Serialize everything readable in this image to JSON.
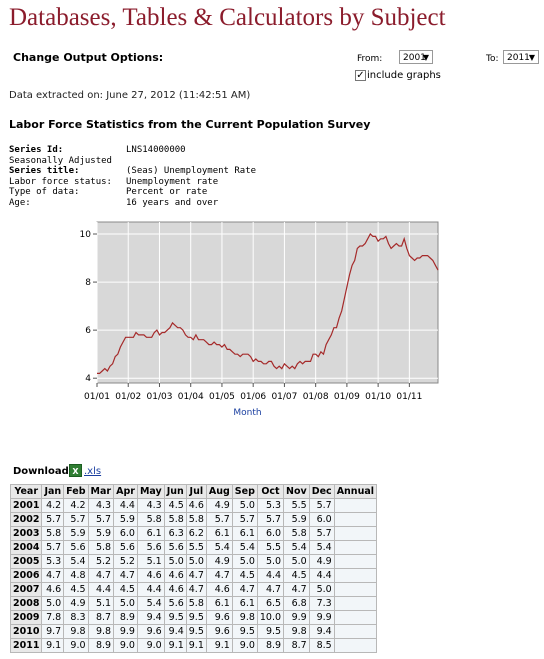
{
  "page": {
    "title": "Databases, Tables & Calculators by Subject",
    "options": {
      "label": "Change Output Options:",
      "from_label": "From:",
      "from_value": "2001",
      "to_label": "To:",
      "to_value": "2011",
      "include_graphs_label": "include graphs",
      "include_graphs_checked": true
    },
    "extracted": "Data extracted on: June 27, 2012 (11:42:51 AM)",
    "subtitle": "Labor Force Statistics from the Current Population Survey"
  },
  "series_meta": {
    "series_id_label": "Series Id:",
    "series_id": "LNS14000000",
    "seasonal": "Seasonally Adjusted",
    "title_label": "Series title:",
    "title": "(Seas) Unemployment Rate",
    "lf_status_label": "Labor force status:",
    "lf_status": "Unemployment rate",
    "type_label": "Type of data:",
    "type": "Percent or rate",
    "age_label": "Age:",
    "age": "16 years and over"
  },
  "download": {
    "label": "Download:",
    "icon": "excel-icon",
    "link": ".xls"
  },
  "chart_data": {
    "type": "line",
    "xlabel": "Month",
    "ylabel": "",
    "ylim": [
      3.8,
      10.5
    ],
    "yticks": [
      "4",
      "6",
      "8",
      "10"
    ],
    "xticks": [
      "01/01",
      "01/02",
      "01/03",
      "01/04",
      "01/05",
      "01/06",
      "01/07",
      "01/08",
      "01/09",
      "01/10",
      "01/11"
    ],
    "grid": true,
    "colors": {
      "line": "#a52a2a",
      "plot_bg": "#d8d8d8",
      "grid": "#ffffff"
    }
  },
  "table": {
    "headers": [
      "Year",
      "Jan",
      "Feb",
      "Mar",
      "Apr",
      "May",
      "Jun",
      "Jul",
      "Aug",
      "Sep",
      "Oct",
      "Nov",
      "Dec",
      "Annual"
    ],
    "rows": [
      {
        "year": "2001",
        "values": [
          "4.2",
          "4.2",
          "4.3",
          "4.4",
          "4.3",
          "4.5",
          "4.6",
          "4.9",
          "5.0",
          "5.3",
          "5.5",
          "5.7"
        ]
      },
      {
        "year": "2002",
        "values": [
          "5.7",
          "5.7",
          "5.7",
          "5.9",
          "5.8",
          "5.8",
          "5.8",
          "5.7",
          "5.7",
          "5.7",
          "5.9",
          "6.0"
        ]
      },
      {
        "year": "2003",
        "values": [
          "5.8",
          "5.9",
          "5.9",
          "6.0",
          "6.1",
          "6.3",
          "6.2",
          "6.1",
          "6.1",
          "6.0",
          "5.8",
          "5.7"
        ]
      },
      {
        "year": "2004",
        "values": [
          "5.7",
          "5.6",
          "5.8",
          "5.6",
          "5.6",
          "5.6",
          "5.5",
          "5.4",
          "5.4",
          "5.5",
          "5.4",
          "5.4"
        ]
      },
      {
        "year": "2005",
        "values": [
          "5.3",
          "5.4",
          "5.2",
          "5.2",
          "5.1",
          "5.0",
          "5.0",
          "4.9",
          "5.0",
          "5.0",
          "5.0",
          "4.9"
        ]
      },
      {
        "year": "2006",
        "values": [
          "4.7",
          "4.8",
          "4.7",
          "4.7",
          "4.6",
          "4.6",
          "4.7",
          "4.7",
          "4.5",
          "4.4",
          "4.5",
          "4.4"
        ]
      },
      {
        "year": "2007",
        "values": [
          "4.6",
          "4.5",
          "4.4",
          "4.5",
          "4.4",
          "4.6",
          "4.7",
          "4.6",
          "4.7",
          "4.7",
          "4.7",
          "5.0"
        ]
      },
      {
        "year": "2008",
        "values": [
          "5.0",
          "4.9",
          "5.1",
          "5.0",
          "5.4",
          "5.6",
          "5.8",
          "6.1",
          "6.1",
          "6.5",
          "6.8",
          "7.3"
        ]
      },
      {
        "year": "2009",
        "values": [
          "7.8",
          "8.3",
          "8.7",
          "8.9",
          "9.4",
          "9.5",
          "9.5",
          "9.6",
          "9.8",
          "10.0",
          "9.9",
          "9.9"
        ]
      },
      {
        "year": "2010",
        "values": [
          "9.7",
          "9.8",
          "9.8",
          "9.9",
          "9.6",
          "9.4",
          "9.5",
          "9.6",
          "9.5",
          "9.5",
          "9.8",
          "9.4"
        ]
      },
      {
        "year": "2011",
        "values": [
          "9.1",
          "9.0",
          "8.9",
          "9.0",
          "9.0",
          "9.1",
          "9.1",
          "9.1",
          "9.0",
          "8.9",
          "8.7",
          "8.5"
        ]
      }
    ]
  }
}
